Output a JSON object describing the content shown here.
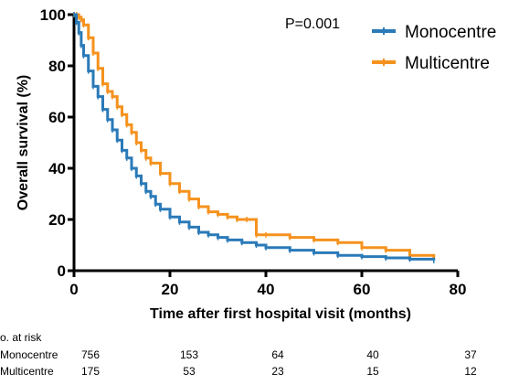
{
  "chart_data": {
    "type": "line",
    "title": "",
    "xlabel": "Time after first hospital visit  (months)",
    "ylabel": "Overall survival  (%)",
    "xlim": [
      0,
      80
    ],
    "ylim": [
      0,
      100
    ],
    "x_ticks": [
      "0",
      "20",
      "40",
      "60",
      "80"
    ],
    "y_ticks": [
      "0",
      "20",
      "40",
      "60",
      "80",
      "100"
    ],
    "grid": false,
    "legend_position": "top-right",
    "annotation": "P=0.001",
    "colors": {
      "Monocentre": "#2a7ab8",
      "Multicentre": "#f5921e"
    },
    "series": [
      {
        "name": "Monocentre",
        "x": [
          0,
          0.5,
          1,
          1.5,
          2,
          3,
          4,
          5,
          6,
          7,
          8,
          9,
          10,
          11,
          12,
          13,
          14,
          15,
          16,
          17,
          18,
          20,
          22,
          24,
          26,
          28,
          30,
          32,
          35,
          38,
          40,
          45,
          50,
          55,
          60,
          65,
          70,
          75
        ],
        "y": [
          100,
          97,
          93,
          88,
          84,
          78,
          72,
          68,
          63,
          59,
          55,
          51,
          47,
          44,
          40,
          37,
          34,
          31,
          29,
          26,
          24,
          21,
          19,
          17,
          15,
          14,
          13,
          12,
          11,
          10,
          9,
          8,
          7,
          6,
          5.5,
          5,
          4.5,
          4
        ]
      },
      {
        "name": "Multicentre",
        "x": [
          0,
          0.5,
          1,
          1.5,
          2,
          3,
          4,
          5,
          6,
          7,
          8,
          9,
          10,
          11,
          12,
          13,
          14,
          15,
          16,
          18,
          20,
          22,
          24,
          26,
          28,
          30,
          32,
          34,
          36,
          38,
          40,
          45,
          50,
          55,
          60,
          65,
          70,
          75
        ],
        "y": [
          100,
          100,
          99,
          98,
          96,
          91,
          85,
          79,
          73,
          70,
          68,
          64,
          61,
          57,
          54,
          50,
          47,
          44,
          42,
          38,
          34,
          31,
          28,
          25,
          23,
          22,
          21,
          20,
          20,
          14,
          14,
          13,
          12,
          11,
          9,
          8,
          6,
          5
        ]
      }
    ]
  },
  "risk_table": {
    "header": "o. at risk",
    "rows": [
      {
        "label": "Monocentre",
        "counts": [
          "756",
          "153",
          "64",
          "40",
          "37"
        ]
      },
      {
        "label": "Multicentre",
        "counts": [
          "175",
          "53",
          "23",
          "15",
          "12"
        ]
      }
    ]
  }
}
